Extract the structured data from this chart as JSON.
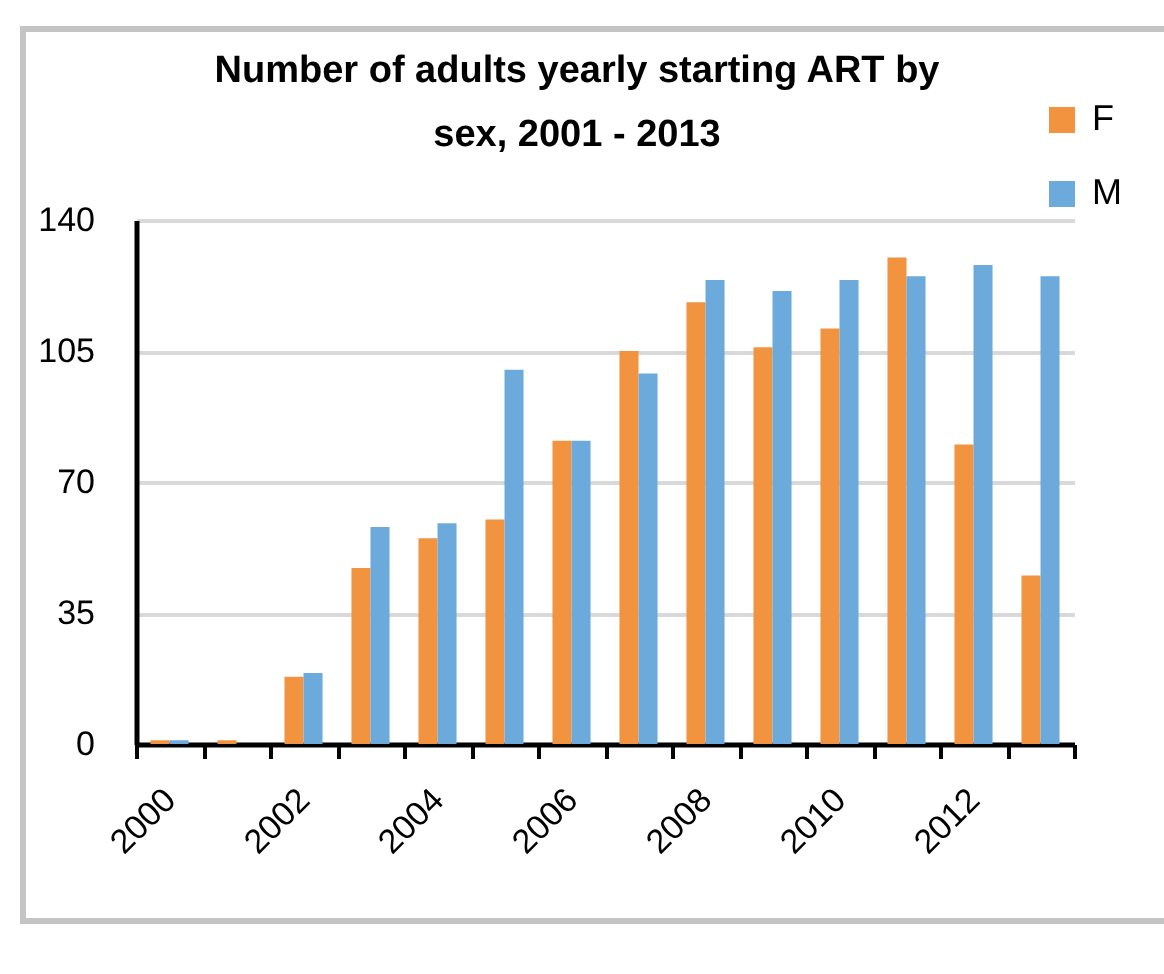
{
  "chart_data": {
    "type": "bar",
    "title": "Number of adults yearly starting ART by sex, 2001 - 2013",
    "categories": [
      "2000",
      null,
      "2002",
      null,
      "2004",
      null,
      "2006",
      null,
      "2008",
      null,
      "2010",
      null,
      "2012",
      null
    ],
    "series": [
      {
        "name": "F",
        "color": "#f29340",
        "values": [
          1,
          1,
          18,
          47,
          55,
          60,
          81,
          105,
          118,
          106,
          111,
          130,
          80,
          45
        ]
      },
      {
        "name": "M",
        "color": "#6caadb",
        "values": [
          1,
          0,
          19,
          58,
          59,
          100,
          81,
          99,
          124,
          121,
          124,
          125,
          128,
          125
        ]
      }
    ],
    "ylim": [
      0,
      140
    ],
    "yticks": [
      0,
      35,
      70,
      105,
      140
    ],
    "grid": "y",
    "legend": "top right"
  }
}
